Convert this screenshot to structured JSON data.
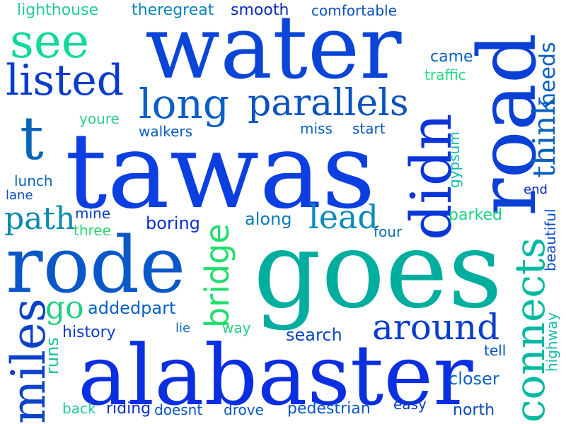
{
  "words": [
    {
      "id": "water",
      "text": "water",
      "color": "#0a45d8"
    },
    {
      "id": "tawas",
      "text": "tawas",
      "color": "#0b3fe0"
    },
    {
      "id": "goes",
      "text": "goes",
      "color": "#00aea0"
    },
    {
      "id": "alabaster",
      "text": "alabaster",
      "color": "#0a2fe0"
    },
    {
      "id": "rode",
      "text": "rode",
      "color": "#0a58c8"
    },
    {
      "id": "road",
      "text": "road",
      "color": "#0a40d6"
    },
    {
      "id": "see",
      "text": "see",
      "color": "#12d89a"
    },
    {
      "id": "listed",
      "text": "listed",
      "color": "#0a3ccc"
    },
    {
      "id": "long",
      "text": "long",
      "color": "#0b5ec8"
    },
    {
      "id": "parallels",
      "text": "parallels",
      "color": "#0a52c0"
    },
    {
      "id": "t",
      "text": "t",
      "color": "#0b66b8"
    },
    {
      "id": "didn",
      "text": "didn",
      "color": "#0a35d8"
    },
    {
      "id": "miles",
      "text": "miles",
      "color": "#0a42c8"
    },
    {
      "id": "connects",
      "text": "connects",
      "color": "#00b9a2"
    },
    {
      "id": "around",
      "text": "around",
      "color": "#0a3ccc"
    },
    {
      "id": "bridge",
      "text": "bridge",
      "color": "#22dd6c"
    },
    {
      "id": "path",
      "text": "path",
      "color": "#0a8ab0"
    },
    {
      "id": "lead",
      "text": "lead",
      "color": "#0a8ab8"
    },
    {
      "id": "go",
      "text": "go",
      "color": "#1ed080"
    },
    {
      "id": "think",
      "text": "think",
      "color": "#0a62c0"
    },
    {
      "id": "needs",
      "text": "needs",
      "color": "#0a60c0"
    },
    {
      "id": "lighthouse",
      "text": "lighthouse",
      "color": "#26c8a0"
    },
    {
      "id": "theregreat",
      "text": "theregreat",
      "color": "#0a84b8"
    },
    {
      "id": "smooth",
      "text": "smooth",
      "color": "#0a2ab8"
    },
    {
      "id": "comfortable",
      "text": "comfortable",
      "color": "#0a4ec0"
    },
    {
      "id": "came",
      "text": "came",
      "color": "#0a5ec0"
    },
    {
      "id": "traffic",
      "text": "traffic",
      "color": "#22dc82"
    },
    {
      "id": "youre",
      "text": "youre",
      "color": "#30cc8a"
    },
    {
      "id": "walkers",
      "text": "walkers",
      "color": "#0a5cc0"
    },
    {
      "id": "miss",
      "text": "miss",
      "color": "#0a62bc"
    },
    {
      "id": "start",
      "text": "start",
      "color": "#0a55c0"
    },
    {
      "id": "gypsum",
      "text": "gypsum",
      "color": "#10b8a8"
    },
    {
      "id": "lunch",
      "text": "lunch",
      "color": "#0a68b8"
    },
    {
      "id": "lane",
      "text": "lane",
      "color": "#0a4cc0"
    },
    {
      "id": "end",
      "text": "end",
      "color": "#0a2ac0"
    },
    {
      "id": "mine",
      "text": "mine",
      "color": "#0a3cb8"
    },
    {
      "id": "three",
      "text": "three",
      "color": "#2cd070"
    },
    {
      "id": "boring",
      "text": "boring",
      "color": "#0a30c8"
    },
    {
      "id": "along",
      "text": "along",
      "color": "#0a7cb4"
    },
    {
      "id": "parked",
      "text": "parked",
      "color": "#1ed282"
    },
    {
      "id": "four",
      "text": "four",
      "color": "#0a6eb8"
    },
    {
      "id": "beautiful",
      "text": "beautiful",
      "color": "#0a4cc8"
    },
    {
      "id": "addedpart",
      "text": "addedpart",
      "color": "#0a60c0"
    },
    {
      "id": "history",
      "text": "history",
      "color": "#0a3cc8"
    },
    {
      "id": "lie",
      "text": "lie",
      "color": "#0a68c0"
    },
    {
      "id": "way",
      "text": "way",
      "color": "#22cc80"
    },
    {
      "id": "search",
      "text": "search",
      "color": "#0a44c0"
    },
    {
      "id": "runs",
      "text": "runs",
      "color": "#14c0a0"
    },
    {
      "id": "tell",
      "text": "tell",
      "color": "#0a52c0"
    },
    {
      "id": "highway",
      "text": "highway",
      "color": "#14b8a8"
    },
    {
      "id": "closer",
      "text": "closer",
      "color": "#0a62c0"
    },
    {
      "id": "back",
      "text": "back",
      "color": "#26c89a"
    },
    {
      "id": "riding",
      "text": "riding",
      "color": "#0a2ed0"
    },
    {
      "id": "doesnt",
      "text": "doesnt",
      "color": "#0a52c0"
    },
    {
      "id": "drove",
      "text": "drove",
      "color": "#0a58c0"
    },
    {
      "id": "pedestrian",
      "text": "pedestrian",
      "color": "#0a58c0"
    },
    {
      "id": "easy",
      "text": "easy",
      "color": "#0a3cb8"
    },
    {
      "id": "north",
      "text": "north",
      "color": "#0a4cb8"
    }
  ]
}
